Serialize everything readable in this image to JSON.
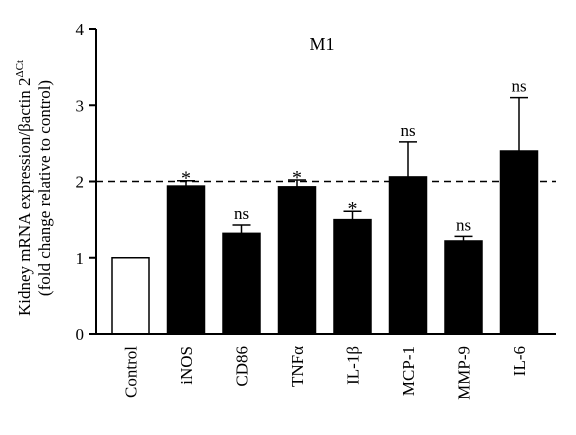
{
  "chart_data": {
    "type": "bar",
    "title": "M1",
    "ylabel_line1": "Kidney mRNA expression/βactin 2",
    "ylabel_superscript": "ΔCt",
    "ylabel_line2": "(fold change relative to control)",
    "categories": [
      "Control",
      "iNOS",
      "CD86",
      "TNFα",
      "IL-1β",
      "MCP-1",
      "MMP-9",
      "IL-6"
    ],
    "values": [
      1.0,
      1.94,
      1.32,
      1.93,
      1.5,
      2.06,
      1.22,
      2.4
    ],
    "errors": [
      0.0,
      0.07,
      0.11,
      0.09,
      0.11,
      0.46,
      0.06,
      0.7
    ],
    "significance": [
      "",
      "*",
      "ns",
      "*",
      "*",
      "ns",
      "ns",
      "ns"
    ],
    "fill_colors": [
      "#ffffff",
      "#000000",
      "#000000",
      "#000000",
      "#000000",
      "#000000",
      "#000000",
      "#000000"
    ],
    "ylim": [
      0,
      4
    ],
    "yticks": [
      0,
      1,
      2,
      3,
      4
    ],
    "reference_line": 2,
    "grid": false,
    "legend": "none"
  }
}
